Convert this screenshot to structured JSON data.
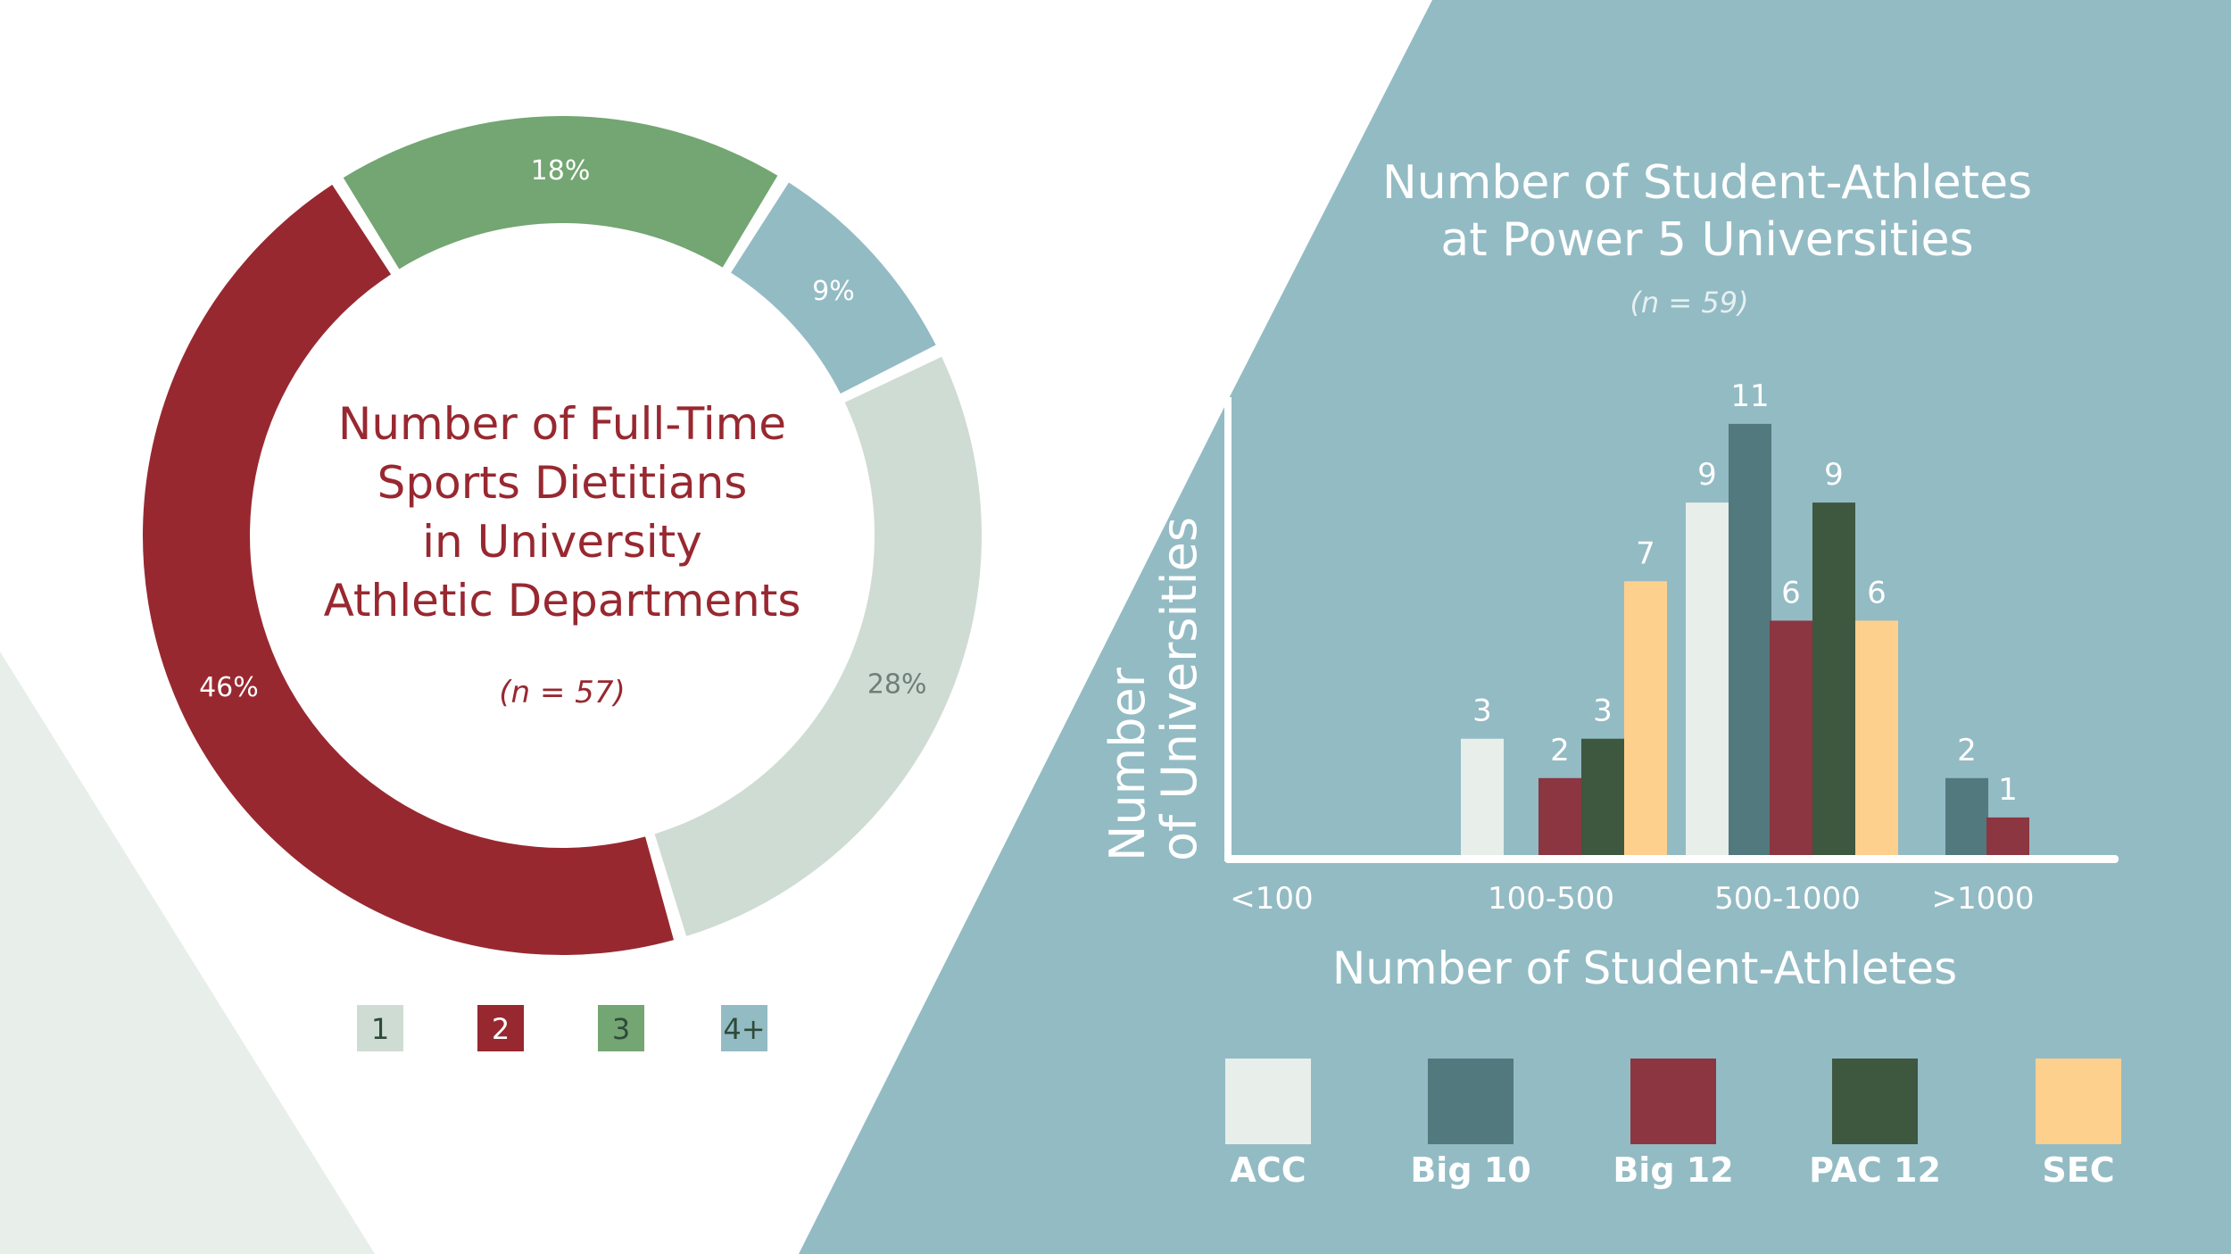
{
  "colors": {
    "background": "#ffffff",
    "left_wedge": "#e8eeea",
    "right_panel": "#93bbc4",
    "donut_1": "#cfdcd3",
    "donut_2": "#982830",
    "donut_3": "#73a672",
    "donut_4plus": "#93bbc4",
    "title_red": "#982830",
    "acc": "#e8eeea",
    "big10": "#52797d",
    "big12": "#8b3640",
    "pac12": "#3e573f",
    "sec": "#fed08e",
    "white": "#ffffff"
  },
  "chart_data": [
    {
      "type": "pie",
      "title": "Number of Full-Time Sports Dietitians in University Athletic Departments",
      "title_lines": [
        "Number of Full-Time",
        "Sports Dietitians",
        "in University",
        "Athletic Departments"
      ],
      "subtitle": "(n = 57)",
      "legend_position": "bottom",
      "slices": [
        {
          "label": "1",
          "value": 28,
          "value_label": "28%",
          "color": "#cfdcd3"
        },
        {
          "label": "2",
          "value": 46,
          "value_label": "46%",
          "color": "#982830"
        },
        {
          "label": "3",
          "value": 18,
          "value_label": "18%",
          "color": "#73a672"
        },
        {
          "label": "4+",
          "value": 9,
          "value_label": "9%",
          "color": "#93bbc4"
        }
      ]
    },
    {
      "type": "bar",
      "title": "Number of Student-Athletes at Power 5 Universities",
      "title_lines": [
        "Number of Student-Athletes",
        "at Power 5 Universities"
      ],
      "subtitle": "(n = 59)",
      "xlabel": "Number of Student-Athletes",
      "ylabel_lines": [
        "Number",
        "of Universities"
      ],
      "categories": [
        "<100",
        "100-500",
        "500-1000",
        ">1000"
      ],
      "legend_position": "bottom",
      "series": [
        {
          "name": "ACC",
          "color": "#e8eeea",
          "values": [
            0,
            3,
            9,
            0
          ]
        },
        {
          "name": "Big 10",
          "color": "#52797d",
          "values": [
            0,
            0,
            11,
            2
          ]
        },
        {
          "name": "Big 12",
          "color": "#8b3640",
          "values": [
            0,
            2,
            6,
            1
          ]
        },
        {
          "name": "PAC 12",
          "color": "#3e573f",
          "values": [
            0,
            3,
            9,
            0
          ]
        },
        {
          "name": "SEC",
          "color": "#fed08e",
          "values": [
            0,
            7,
            6,
            0
          ]
        }
      ],
      "ylim": [
        0,
        12
      ],
      "grid": false
    }
  ]
}
